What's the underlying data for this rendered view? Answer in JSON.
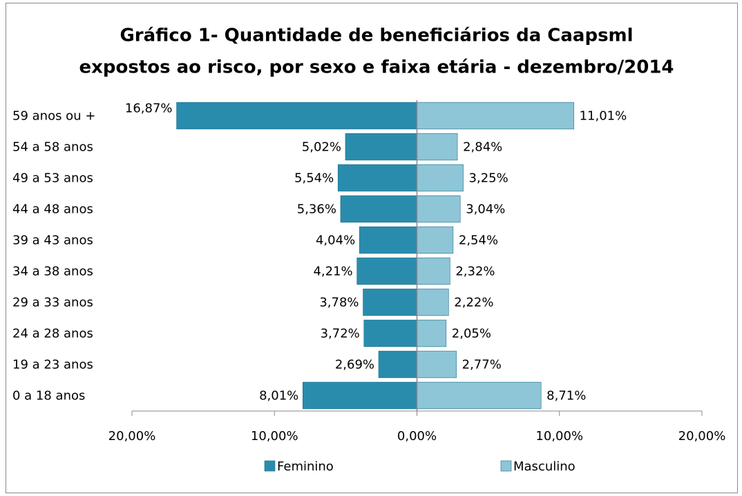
{
  "chart_data": {
    "type": "pyramid",
    "title": [
      "Gráfico 1- Quantidade de beneficiários  da Caapsml",
      "expostos ao risco, por sexo e faixa etária - dezembro/2014"
    ],
    "categories": [
      "59 anos ou +",
      "54 a  58 anos",
      "49 a  53 anos",
      "44 a  48 anos",
      "39 a  43 anos",
      "34 a  38 anos",
      "29 a  33 anos",
      "24 a  28 anos",
      "19 a  23 anos",
      "0 a  18 anos"
    ],
    "series": [
      {
        "name": "Feminino",
        "color": "#2a8cad",
        "values": [
          -16.87,
          -5.02,
          -5.54,
          -5.36,
          -4.04,
          -4.21,
          -3.78,
          -3.72,
          -2.69,
          -8.01
        ],
        "value_labels": [
          "16,87%",
          "5,02%",
          "5,54%",
          "5,36%",
          "4,04%",
          "4,21%",
          "3,78%",
          "3,72%",
          "2,69%",
          "8,01%"
        ]
      },
      {
        "name": "Masculino",
        "color": "#8ec5d7",
        "values": [
          11.01,
          2.84,
          3.25,
          3.04,
          2.54,
          2.32,
          2.22,
          2.05,
          2.77,
          8.71
        ],
        "value_labels": [
          "11,01%",
          "2,84%",
          "3,25%",
          "3,04%",
          "2,54%",
          "2,32%",
          "2,22%",
          "2,05%",
          "2,77%",
          "8,71%"
        ]
      }
    ],
    "xlim": [
      -20,
      20
    ],
    "xticks": [
      {
        "value": -20,
        "label": "20,00%"
      },
      {
        "value": -10,
        "label": "10,00%"
      },
      {
        "value": 0,
        "label": "0,00%"
      },
      {
        "value": 10,
        "label": "10,00%"
      },
      {
        "value": 20,
        "label": "20,00%"
      }
    ],
    "legend": "bottom"
  }
}
